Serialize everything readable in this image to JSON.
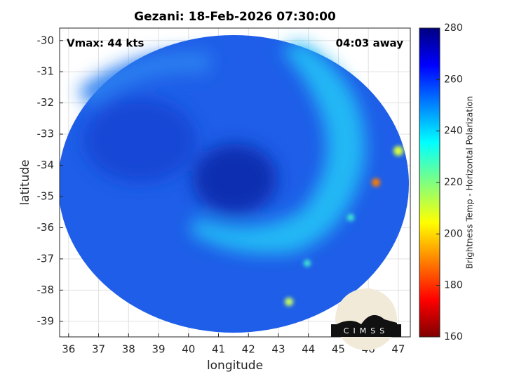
{
  "chart_data": {
    "type": "image",
    "title": "Gezani: 18-Feb-2026 07:30:00",
    "annotations": [
      "Vmax: 44 kts",
      "04:03 away"
    ],
    "x_label": "longitude",
    "y_label": "latitude",
    "xlim": [
      35.7,
      47.4
    ],
    "ylim": [
      -39.5,
      -29.6
    ],
    "xticks": [
      36,
      37,
      38,
      39,
      40,
      41,
      42,
      43,
      44,
      45,
      46,
      47
    ],
    "yticks": [
      -30,
      -31,
      -32,
      -33,
      -34,
      -35,
      -36,
      -37,
      -38,
      -39
    ],
    "grid": true,
    "colorbar": {
      "label": "Brightness Temp - Horizontal Polarization",
      "lim": [
        160,
        280
      ],
      "ticks": [
        160,
        180,
        200,
        220,
        240,
        260,
        280
      ]
    },
    "logo": "CIMSS"
  }
}
